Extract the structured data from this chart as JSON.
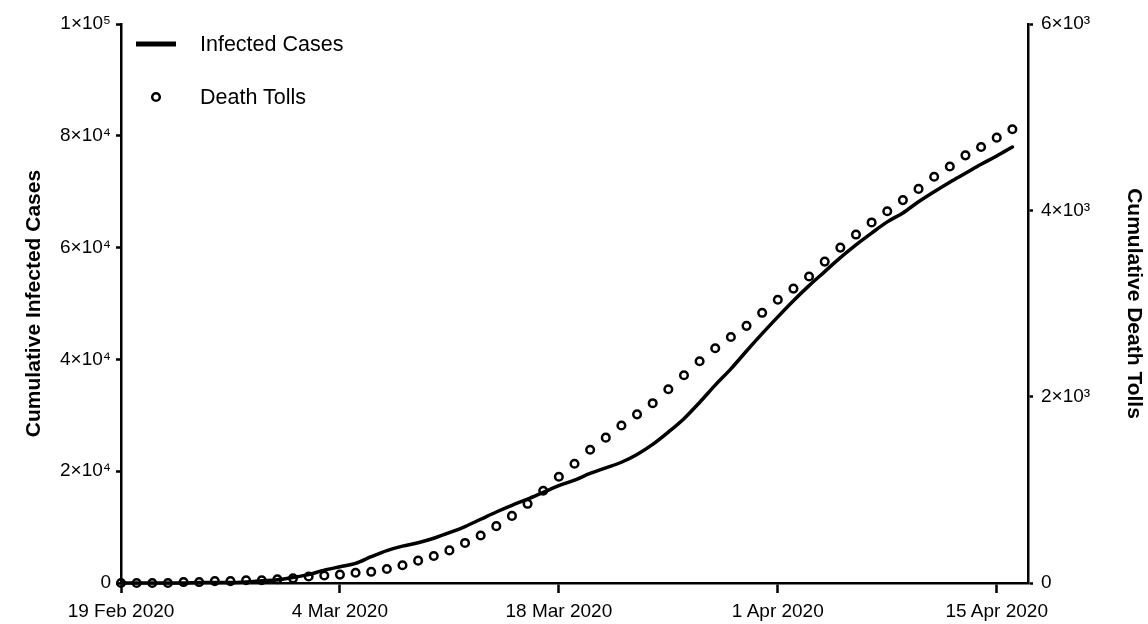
{
  "chart_data": {
    "type": "line",
    "x": [
      "2020-02-19",
      "2020-02-20",
      "2020-02-21",
      "2020-02-22",
      "2020-02-23",
      "2020-02-24",
      "2020-02-25",
      "2020-02-26",
      "2020-02-27",
      "2020-02-28",
      "2020-02-29",
      "2020-03-01",
      "2020-03-02",
      "2020-03-03",
      "2020-03-04",
      "2020-03-05",
      "2020-03-06",
      "2020-03-07",
      "2020-03-08",
      "2020-03-09",
      "2020-03-10",
      "2020-03-11",
      "2020-03-12",
      "2020-03-13",
      "2020-03-14",
      "2020-03-15",
      "2020-03-16",
      "2020-03-17",
      "2020-03-18",
      "2020-03-19",
      "2020-03-20",
      "2020-03-21",
      "2020-03-22",
      "2020-03-23",
      "2020-03-24",
      "2020-03-25",
      "2020-03-26",
      "2020-03-27",
      "2020-03-28",
      "2020-03-29",
      "2020-03-30",
      "2020-03-31",
      "2020-04-01",
      "2020-04-02",
      "2020-04-03",
      "2020-04-04",
      "2020-04-05",
      "2020-04-06",
      "2020-04-07",
      "2020-04-08",
      "2020-04-09",
      "2020-04-10",
      "2020-04-11",
      "2020-04-12",
      "2020-04-13",
      "2020-04-14",
      "2020-04-15",
      "2020-04-16"
    ],
    "xlim": [
      "2020-02-19",
      "2020-04-17"
    ],
    "xticks": [
      {
        "value": "2020-02-19",
        "label": "19 Feb 2020"
      },
      {
        "value": "2020-03-04",
        "label": "4 Mar 2020"
      },
      {
        "value": "2020-03-18",
        "label": "18 Mar 2020"
      },
      {
        "value": "2020-04-01",
        "label": "1 Apr 2020"
      },
      {
        "value": "2020-04-15",
        "label": "15 Apr 2020"
      }
    ],
    "ylabel": "Cumulative Infected Cases",
    "y2label": "Cumulative Death Tolls",
    "ylim": [
      0,
      100000
    ],
    "yticks": [
      0,
      {
        "value": 20000,
        "label": "2×10⁴"
      },
      {
        "value": 40000,
        "label": "4×10⁴"
      },
      {
        "value": 60000,
        "label": "6×10⁴"
      },
      {
        "value": 80000,
        "label": "8×10⁴"
      },
      {
        "value": 100000,
        "label": "1×10⁵"
      }
    ],
    "y2lim": [
      0,
      6000
    ],
    "y2ticks": [
      0,
      {
        "value": 2000,
        "label": "2×10³"
      },
      {
        "value": 4000,
        "label": "4×10³"
      },
      {
        "value": 6000,
        "label": "6×10³"
      }
    ],
    "legend": "top left",
    "series": [
      {
        "name": "Infected Cases",
        "type": "line",
        "color": "#000000",
        "values": [
          0,
          0,
          0,
          0,
          0,
          100,
          100,
          100,
          200,
          400,
          600,
          1000,
          1500,
          2300,
          2900,
          3500,
          4700,
          5800,
          6600,
          7200,
          8000,
          9000,
          10100,
          11400,
          12700,
          13900,
          15000,
          16200,
          17400,
          18400,
          19600,
          20600,
          21600,
          23000,
          24800,
          27000,
          29400,
          32300,
          35400,
          38300,
          41500,
          44600,
          47600,
          50500,
          53200,
          55700,
          58200,
          60500,
          62600,
          64600,
          66200,
          68200,
          70000,
          71700,
          73300,
          74900,
          76400,
          78000
        ]
      },
      {
        "name": "Death Tolls",
        "type": "scatter",
        "axis": "y2",
        "marker": "circle",
        "color": "#000000",
        "values": [
          0,
          0,
          0,
          0,
          10,
          10,
          20,
          20,
          30,
          30,
          40,
          50,
          70,
          80,
          90,
          110,
          120,
          150,
          190,
          240,
          290,
          350,
          430,
          510,
          610,
          720,
          850,
          990,
          1140,
          1280,
          1430,
          1560,
          1690,
          1810,
          1930,
          2080,
          2230,
          2380,
          2520,
          2640,
          2760,
          2900,
          3040,
          3160,
          3290,
          3450,
          3600,
          3740,
          3870,
          3990,
          4110,
          4230,
          4360,
          4470,
          4590,
          4680,
          4780,
          4870
        ]
      }
    ]
  }
}
